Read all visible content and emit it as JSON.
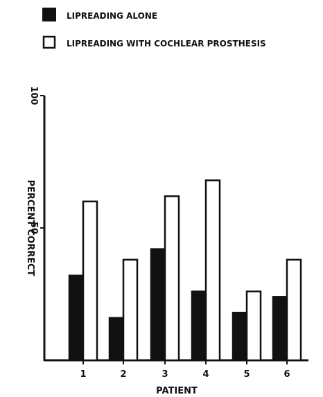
{
  "chart_data": {
    "type": "bar",
    "xlabel": "PATIENT",
    "ylabel": "PERCENT CORRECT",
    "categories": [
      "1",
      "2",
      "3",
      "4",
      "5",
      "6"
    ],
    "yticks": [
      50,
      100
    ],
    "ylim": [
      0,
      100
    ],
    "grid": false,
    "legend_position": "top-left",
    "series": [
      {
        "name": "LIPREADING ALONE",
        "color": "#111111",
        "values": [
          32,
          16,
          42,
          26,
          18,
          24
        ]
      },
      {
        "name": "LIPREADING WITH COCHLEAR PROSTHESIS",
        "color": "#ffffff",
        "values": [
          60,
          38,
          62,
          68,
          26,
          38
        ]
      }
    ]
  }
}
